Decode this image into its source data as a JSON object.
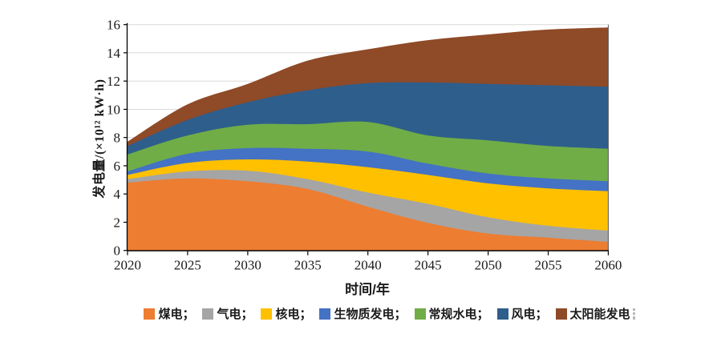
{
  "chart_data": {
    "type": "area",
    "stacked": true,
    "title": "",
    "xlabel": "时间/年",
    "ylabel": "发电量/(×10¹² kW·h)",
    "x": [
      2020,
      2025,
      2030,
      2035,
      2040,
      2045,
      2050,
      2055,
      2060
    ],
    "xlim": [
      2020,
      2060
    ],
    "ylim": [
      0,
      16
    ],
    "yticks": [
      0,
      2,
      4,
      6,
      8,
      10,
      12,
      14,
      16
    ],
    "xticks": [
      2020,
      2025,
      2030,
      2035,
      2040,
      2045,
      2050,
      2055,
      2060
    ],
    "grid": "horizontal",
    "grid_color": "#d9d9d9",
    "axis_color": "#000000",
    "axis_text_color": "#1a1a1a",
    "legend_position": "bottom",
    "series": [
      {
        "name": "煤电",
        "color": "#ED7D31",
        "values": [
          4.8,
          5.1,
          4.9,
          4.35,
          3.1,
          1.95,
          1.2,
          0.9,
          0.6
        ]
      },
      {
        "name": "气电",
        "color": "#A5A5A5",
        "values": [
          0.25,
          0.5,
          0.75,
          0.7,
          1.0,
          1.35,
          1.15,
          0.85,
          0.8
        ]
      },
      {
        "name": "核电",
        "color": "#FFC000",
        "values": [
          0.3,
          0.6,
          0.8,
          1.25,
          1.8,
          2.05,
          2.4,
          2.65,
          2.8
        ]
      },
      {
        "name": "生物质发电",
        "color": "#4472C4",
        "values": [
          0.25,
          0.65,
          0.8,
          0.9,
          1.1,
          0.8,
          0.7,
          0.7,
          0.7
        ]
      },
      {
        "name": "常规水电",
        "color": "#70AD47",
        "values": [
          1.2,
          1.3,
          1.65,
          1.75,
          2.1,
          2.0,
          2.35,
          2.3,
          2.3
        ]
      },
      {
        "name": "风电",
        "color": "#2E5E8C",
        "values": [
          0.6,
          1.1,
          1.6,
          2.4,
          2.75,
          3.75,
          4.0,
          4.3,
          4.4
        ]
      },
      {
        "name": "太阳能发电",
        "color": "#8F4A28",
        "values": [
          0.3,
          1.1,
          1.3,
          2.1,
          2.4,
          3.0,
          3.5,
          3.95,
          4.2
        ]
      }
    ],
    "totals": [
      7.7,
      10.35,
      11.8,
      13.45,
      14.25,
      14.9,
      15.3,
      15.65,
      15.8
    ],
    "legend_labels": [
      "煤电；",
      "气电；",
      "核电；",
      "生物质发电；",
      "常规水电；",
      "风电；",
      "太阳能发电"
    ]
  }
}
